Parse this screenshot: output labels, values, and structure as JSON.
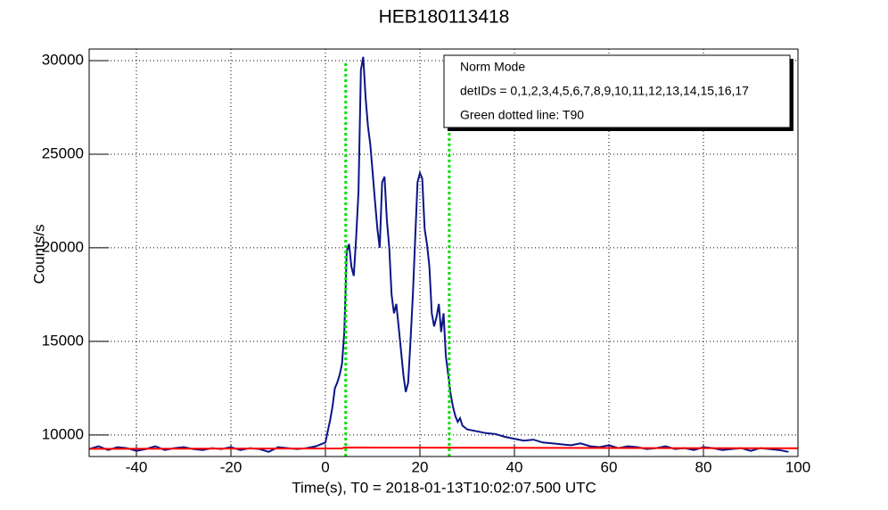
{
  "chart_data": {
    "type": "line",
    "title": "HEB180113418",
    "xlabel": "Time(s), T0 = 2018-01-13T10:02:07.500 UTC",
    "ylabel": "Counts/s",
    "xlim": [
      -50,
      100
    ],
    "ylim": [
      8850,
      30620
    ],
    "xticks": [
      -40,
      -20,
      0,
      20,
      40,
      60,
      80,
      100
    ],
    "yticks": [
      10000,
      15000,
      20000,
      25000,
      30000
    ],
    "grid": true,
    "legend_text": [
      "Norm Mode",
      "detIDs = 0,1,2,3,4,5,6,7,8,9,10,11,12,13,14,15,16,17",
      "Green dotted line: T90"
    ],
    "vlines": {
      "values": [
        4.3,
        26.2
      ],
      "color": "#00e000"
    },
    "series": [
      {
        "color": "#0b1585",
        "x": [
          -50,
          -48,
          -46,
          -44,
          -42,
          -40,
          -38,
          -36,
          -34,
          -32,
          -30,
          -28,
          -26,
          -24,
          -22,
          -20,
          -18,
          -16,
          -14,
          -12,
          -10,
          -8,
          -6,
          -4,
          -2,
          0,
          0.5,
          1,
          1.5,
          2,
          2.5,
          3,
          3.5,
          4,
          4.5,
          5,
          5.5,
          6,
          6.5,
          7,
          7.5,
          8,
          8.5,
          9,
          9.5,
          10,
          10.5,
          11,
          11.5,
          12,
          12.5,
          13,
          13.5,
          14,
          14.5,
          15,
          15.5,
          16,
          16.5,
          17,
          17.5,
          18,
          18.5,
          19,
          19.5,
          20,
          20.5,
          21,
          21.5,
          22,
          22.5,
          23,
          23.5,
          24,
          24.5,
          25,
          25.5,
          26,
          26.5,
          27,
          27.5,
          28,
          28.5,
          29,
          29.5,
          30,
          32,
          34,
          36,
          38,
          40,
          42,
          44,
          46,
          48,
          50,
          52,
          54,
          56,
          58,
          60,
          62,
          64,
          66,
          68,
          70,
          72,
          74,
          76,
          78,
          80,
          82,
          84,
          86,
          88,
          90,
          92,
          94,
          96,
          98
        ],
        "values": [
          9250,
          9400,
          9200,
          9350,
          9300,
          9150,
          9250,
          9400,
          9200,
          9300,
          9350,
          9250,
          9200,
          9300,
          9250,
          9350,
          9200,
          9300,
          9250,
          9100,
          9350,
          9300,
          9250,
          9300,
          9400,
          9600,
          10200,
          10800,
          11500,
          12500,
          12800,
          13200,
          13800,
          15500,
          19800,
          20200,
          19000,
          18500,
          20500,
          23000,
          29500,
          30200,
          28000,
          26500,
          25500,
          24000,
          22500,
          21000,
          20000,
          23500,
          23800,
          21500,
          20000,
          17500,
          16500,
          17000,
          15800,
          14500,
          13200,
          12300,
          12800,
          15000,
          17500,
          20500,
          23500,
          24000,
          23700,
          21000,
          20200,
          19000,
          16500,
          15800,
          16300,
          17000,
          15500,
          16500,
          14200,
          13200,
          12200,
          11500,
          11000,
          10700,
          10900,
          10500,
          10400,
          10300,
          10200,
          10100,
          10050,
          9900,
          9800,
          9700,
          9750,
          9600,
          9550,
          9500,
          9450,
          9550,
          9400,
          9350,
          9450,
          9300,
          9400,
          9350,
          9250,
          9300,
          9400,
          9250,
          9300,
          9200,
          9350,
          9300,
          9200,
          9250,
          9300,
          9150,
          9300,
          9250,
          9200,
          9100
        ]
      },
      {
        "color": "#ff0000",
        "x": [
          -50,
          3.5,
          4,
          100
        ],
        "values": [
          9260,
          9280,
          9330,
          9290
        ]
      }
    ]
  }
}
